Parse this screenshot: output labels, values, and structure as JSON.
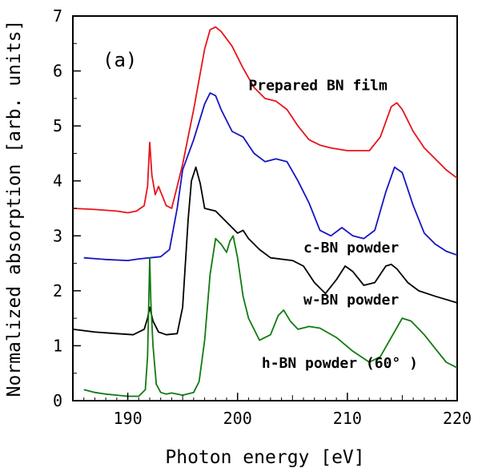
{
  "chart_data": {
    "type": "line",
    "panel_label": "(a)",
    "title": "",
    "xlabel": "Photon energy [eV]",
    "ylabel": "Normalized absorption [arb. units]",
    "xlim": [
      185,
      220
    ],
    "ylim": [
      0,
      7
    ],
    "x_ticks": [
      190,
      200,
      210,
      220
    ],
    "y_ticks": [
      0,
      1,
      2,
      3,
      4,
      5,
      6,
      7
    ],
    "grid": false,
    "series": [
      {
        "name": "Prepared BN film",
        "color": "#e8141b",
        "points": [
          [
            185,
            3.5
          ],
          [
            187,
            3.48
          ],
          [
            189,
            3.45
          ],
          [
            190,
            3.42
          ],
          [
            190.8,
            3.45
          ],
          [
            191.5,
            3.55
          ],
          [
            191.8,
            3.9
          ],
          [
            192,
            4.7
          ],
          [
            192.2,
            4.1
          ],
          [
            192.5,
            3.75
          ],
          [
            192.8,
            3.9
          ],
          [
            193,
            3.8
          ],
          [
            193.5,
            3.55
          ],
          [
            194,
            3.5
          ],
          [
            194.5,
            3.9
          ],
          [
            195,
            4.3
          ],
          [
            196,
            5.3
          ],
          [
            197,
            6.4
          ],
          [
            197.5,
            6.75
          ],
          [
            198,
            6.8
          ],
          [
            198.5,
            6.72
          ],
          [
            199.5,
            6.45
          ],
          [
            200.5,
            6.05
          ],
          [
            201.5,
            5.7
          ],
          [
            202.5,
            5.5
          ],
          [
            203.5,
            5.45
          ],
          [
            204.5,
            5.3
          ],
          [
            205.5,
            5.0
          ],
          [
            206.5,
            4.75
          ],
          [
            207.5,
            4.65
          ],
          [
            208.5,
            4.6
          ],
          [
            210,
            4.55
          ],
          [
            212,
            4.55
          ],
          [
            213,
            4.8
          ],
          [
            214,
            5.35
          ],
          [
            214.5,
            5.42
          ],
          [
            215,
            5.3
          ],
          [
            216,
            4.9
          ],
          [
            217,
            4.6
          ],
          [
            218,
            4.4
          ],
          [
            219,
            4.2
          ],
          [
            220,
            4.05
          ]
        ]
      },
      {
        "name": "c-BN powder",
        "color": "#1515c2",
        "points": [
          [
            186,
            2.6
          ],
          [
            188,
            2.57
          ],
          [
            190,
            2.55
          ],
          [
            191,
            2.58
          ],
          [
            192,
            2.6
          ],
          [
            193,
            2.62
          ],
          [
            193.8,
            2.75
          ],
          [
            194.5,
            3.5
          ],
          [
            195,
            4.2
          ],
          [
            196,
            4.75
          ],
          [
            197,
            5.4
          ],
          [
            197.5,
            5.6
          ],
          [
            198,
            5.55
          ],
          [
            198.5,
            5.3
          ],
          [
            199.5,
            4.9
          ],
          [
            200.5,
            4.8
          ],
          [
            201.5,
            4.5
          ],
          [
            202.5,
            4.35
          ],
          [
            203.5,
            4.4
          ],
          [
            204.5,
            4.35
          ],
          [
            205.5,
            4.0
          ],
          [
            206.5,
            3.6
          ],
          [
            207.5,
            3.1
          ],
          [
            208.5,
            3.0
          ],
          [
            209.5,
            3.15
          ],
          [
            210.5,
            3.0
          ],
          [
            211.5,
            2.95
          ],
          [
            212.5,
            3.1
          ],
          [
            213.5,
            3.8
          ],
          [
            214.3,
            4.25
          ],
          [
            215,
            4.15
          ],
          [
            216,
            3.55
          ],
          [
            217,
            3.05
          ],
          [
            218,
            2.85
          ],
          [
            219,
            2.72
          ],
          [
            220,
            2.65
          ]
        ]
      },
      {
        "name": "w-BN powder",
        "color": "#000000",
        "points": [
          [
            185,
            1.3
          ],
          [
            187,
            1.25
          ],
          [
            189,
            1.22
          ],
          [
            190.5,
            1.2
          ],
          [
            191.5,
            1.3
          ],
          [
            191.8,
            1.5
          ],
          [
            192,
            1.7
          ],
          [
            192.3,
            1.45
          ],
          [
            192.8,
            1.25
          ],
          [
            193.5,
            1.2
          ],
          [
            194.5,
            1.22
          ],
          [
            195,
            1.7
          ],
          [
            195.5,
            3.3
          ],
          [
            195.8,
            4.0
          ],
          [
            196.2,
            4.25
          ],
          [
            196.6,
            3.95
          ],
          [
            197,
            3.5
          ],
          [
            198,
            3.45
          ],
          [
            199,
            3.25
          ],
          [
            200,
            3.05
          ],
          [
            200.5,
            3.1
          ],
          [
            201,
            2.95
          ],
          [
            202,
            2.75
          ],
          [
            203,
            2.6
          ],
          [
            205,
            2.55
          ],
          [
            206,
            2.45
          ],
          [
            207,
            2.15
          ],
          [
            208,
            1.95
          ],
          [
            209,
            2.2
          ],
          [
            209.8,
            2.45
          ],
          [
            210.5,
            2.35
          ],
          [
            211.5,
            2.1
          ],
          [
            212.5,
            2.15
          ],
          [
            213.5,
            2.45
          ],
          [
            214,
            2.48
          ],
          [
            214.5,
            2.4
          ],
          [
            215.5,
            2.15
          ],
          [
            216.5,
            2.0
          ],
          [
            218,
            1.9
          ],
          [
            220,
            1.78
          ]
        ]
      },
      {
        "name": "h-BN powder (60°)",
        "color": "#117a11",
        "points": [
          [
            186,
            0.2
          ],
          [
            187,
            0.15
          ],
          [
            188,
            0.12
          ],
          [
            189,
            0.1
          ],
          [
            190,
            0.08
          ],
          [
            191,
            0.08
          ],
          [
            191.6,
            0.2
          ],
          [
            191.8,
            0.8
          ],
          [
            192,
            2.6
          ],
          [
            192.1,
            1.8
          ],
          [
            192.3,
            1.0
          ],
          [
            192.6,
            0.3
          ],
          [
            193,
            0.15
          ],
          [
            193.5,
            0.12
          ],
          [
            194,
            0.14
          ],
          [
            195,
            0.1
          ],
          [
            196,
            0.15
          ],
          [
            196.5,
            0.35
          ],
          [
            197,
            1.1
          ],
          [
            197.5,
            2.3
          ],
          [
            198,
            2.95
          ],
          [
            198.5,
            2.85
          ],
          [
            199,
            2.7
          ],
          [
            199.3,
            2.9
          ],
          [
            199.6,
            3.0
          ],
          [
            200,
            2.6
          ],
          [
            200.5,
            1.9
          ],
          [
            201,
            1.5
          ],
          [
            201.5,
            1.3
          ],
          [
            202,
            1.1
          ],
          [
            203,
            1.2
          ],
          [
            203.7,
            1.55
          ],
          [
            204.2,
            1.65
          ],
          [
            204.8,
            1.45
          ],
          [
            205.5,
            1.3
          ],
          [
            206.5,
            1.35
          ],
          [
            207.5,
            1.32
          ],
          [
            209,
            1.15
          ],
          [
            210.5,
            0.9
          ],
          [
            212,
            0.7
          ],
          [
            213,
            0.8
          ],
          [
            214,
            1.15
          ],
          [
            215,
            1.5
          ],
          [
            215.8,
            1.45
          ],
          [
            217,
            1.2
          ],
          [
            218,
            0.95
          ],
          [
            219,
            0.7
          ],
          [
            220,
            0.6
          ]
        ]
      }
    ],
    "annotations": [
      {
        "text": "Prepared BN film",
        "series": 0,
        "x": 201,
        "y": 5.65
      },
      {
        "text": "c-BN powder",
        "series": 1,
        "x": 206,
        "y": 2.7
      },
      {
        "text": "w-BN powder",
        "series": 2,
        "x": 206,
        "y": 1.75
      },
      {
        "text": "h-BN powder (60° )",
        "series": 3,
        "x": 202.2,
        "y": 0.6
      }
    ]
  }
}
